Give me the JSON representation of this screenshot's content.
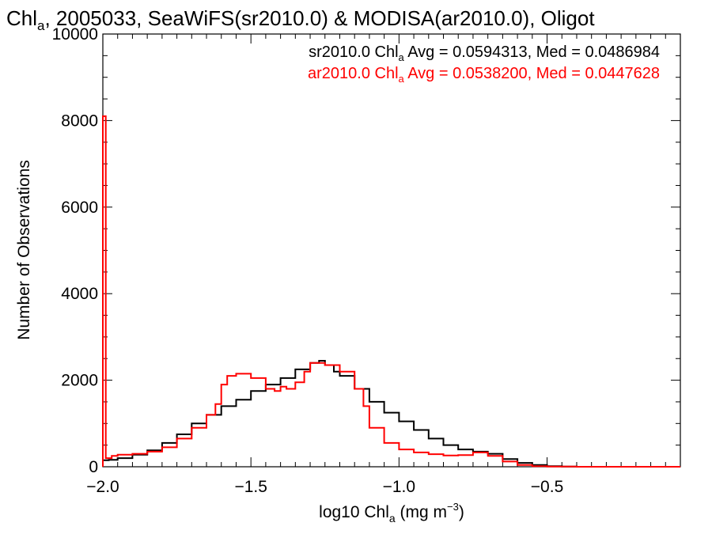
{
  "chart_data": {
    "type": "line",
    "title_main": "Chl",
    "title_sub": "a",
    "title_rest": ", 2005033, SeaWiFS(sr2010.0) & MODISA(ar2010.0), Oligot",
    "xlabel_main": "log10 Chl",
    "xlabel_sub": "a",
    "xlabel_unit_pre": " (mg m",
    "xlabel_unit_sup": "−3",
    "xlabel_unit_post": ")",
    "ylabel": "Number of Observations",
    "xlim": [
      -2.0,
      -0.05
    ],
    "ylim": [
      0,
      10000
    ],
    "x_ticks": [
      -2.0,
      -1.5,
      -1.0,
      -0.5
    ],
    "x_tick_labels": [
      "−2.0",
      "−1.5",
      "−1.0",
      "−0.5"
    ],
    "y_ticks": [
      0,
      2000,
      4000,
      6000,
      8000,
      10000
    ],
    "y_tick_labels": [
      "0",
      "2000",
      "4000",
      "6000",
      "8000",
      "10000"
    ],
    "colors": {
      "sr": "#000000",
      "ar": "#ff0000",
      "axis": "#000000"
    },
    "annotations": [
      {
        "name": "sr-stats",
        "color": "#000000",
        "pre": "sr2010.0 Chl",
        "sub": "a",
        "post": " Avg = 0.0594313, Med = 0.0486984"
      },
      {
        "name": "ar-stats",
        "color": "#ff0000",
        "pre": "ar2010.0 Chl",
        "sub": "a",
        "post": " Avg = 0.0538200, Med = 0.0447628"
      }
    ],
    "series": [
      {
        "color": "#000000",
        "x": [
          -2.0,
          -1.98,
          -1.95,
          -1.9,
          -1.85,
          -1.8,
          -1.75,
          -1.7,
          -1.65,
          -1.6,
          -1.55,
          -1.5,
          -1.45,
          -1.4,
          -1.35,
          -1.3,
          -1.27,
          -1.25,
          -1.22,
          -1.2,
          -1.15,
          -1.1,
          -1.05,
          -1.0,
          -0.95,
          -0.9,
          -0.85,
          -0.8,
          -0.75,
          -0.7,
          -0.65,
          -0.6,
          -0.55,
          -0.5,
          -0.45,
          -0.4,
          -0.3,
          -0.2,
          -0.05
        ],
        "y": [
          150,
          160,
          200,
          280,
          380,
          550,
          750,
          1000,
          1200,
          1400,
          1550,
          1750,
          1900,
          2050,
          2250,
          2400,
          2450,
          2350,
          2200,
          2100,
          1800,
          1500,
          1250,
          1050,
          850,
          650,
          500,
          400,
          350,
          300,
          180,
          90,
          40,
          15,
          5,
          0,
          0,
          0,
          0
        ]
      },
      {
        "color": "#ff0000",
        "x": [
          -2.0,
          -1.99,
          -1.97,
          -1.95,
          -1.9,
          -1.85,
          -1.8,
          -1.75,
          -1.7,
          -1.65,
          -1.62,
          -1.6,
          -1.58,
          -1.55,
          -1.5,
          -1.45,
          -1.42,
          -1.4,
          -1.38,
          -1.35,
          -1.32,
          -1.3,
          -1.25,
          -1.2,
          -1.15,
          -1.12,
          -1.1,
          -1.05,
          -1.0,
          -0.95,
          -0.9,
          -0.85,
          -0.8,
          -0.75,
          -0.7,
          -0.65,
          -0.6,
          -0.55,
          -0.5,
          -0.4,
          -0.3,
          -0.05
        ],
        "y": [
          8100,
          200,
          250,
          280,
          300,
          350,
          450,
          650,
          900,
          1200,
          1450,
          1900,
          2100,
          2150,
          2050,
          1800,
          1750,
          1850,
          1800,
          1950,
          2200,
          2400,
          2350,
          2200,
          1800,
          1400,
          900,
          550,
          400,
          330,
          290,
          260,
          270,
          330,
          250,
          120,
          40,
          15,
          5,
          0,
          0,
          0
        ]
      }
    ]
  }
}
